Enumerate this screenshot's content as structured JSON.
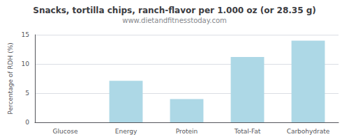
{
  "chart_data": {
    "type": "bar",
    "title": "Snacks, tortilla chips, ranch-flavor per 1.000 oz (or 28.35 g)",
    "subtitle": "www.dietandfitnesstoday.com",
    "categories": [
      "Glucose",
      "Energy",
      "Protein",
      "Total-Fat",
      "Carbohydrate"
    ],
    "values": [
      0,
      7.1,
      4.0,
      11.2,
      14.0
    ],
    "color": "#add8e6",
    "ylabel": "Percentage of RDH (%)",
    "ylim": [
      0,
      15
    ],
    "yticks": [
      0,
      5,
      10,
      15
    ],
    "grid": true
  }
}
